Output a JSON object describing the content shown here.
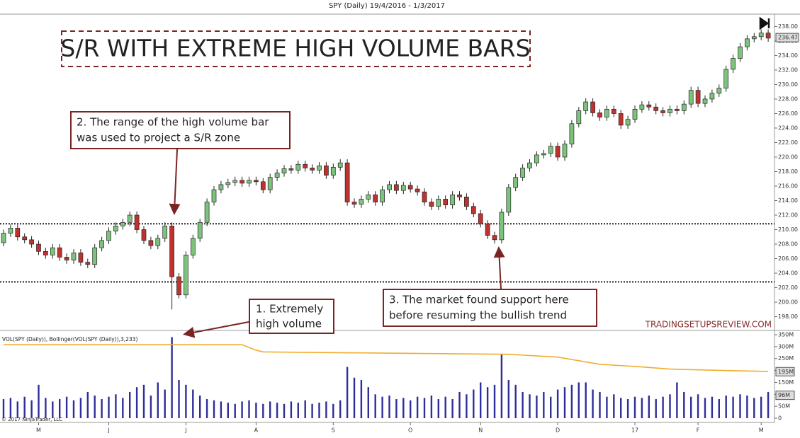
{
  "chart_data": [
    {
      "type": "candlestick",
      "title": "SPY (Daily)  19/4/2016 - 1/3/2017",
      "open": [
        208.2,
        209.5,
        210.2,
        209,
        208.6,
        208,
        207,
        206.5,
        207.5,
        206.2,
        205.8,
        206.8,
        205.5,
        205.2,
        207.5,
        208.5,
        209.8,
        210.5,
        211,
        212,
        210,
        208.5,
        207.8,
        208.8,
        210.5,
        203.5,
        201,
        206.5,
        208.8,
        211,
        213.8,
        215.5,
        216.2,
        216.5,
        216.8,
        216.4,
        216.8,
        216.6,
        215.5,
        217.2,
        217.8,
        218.4,
        218.2,
        219,
        218.5,
        218.2,
        218.8,
        217.5,
        218.6,
        219.2,
        213.8,
        213.5,
        214.2,
        214.8,
        213.8,
        215.5,
        216.2,
        215.4,
        216.1,
        215.6,
        215.2,
        213.8,
        213.2,
        214.2,
        213.4,
        214.8,
        214.5,
        213.2,
        212.2,
        210.8,
        209.2,
        208.6,
        212.4,
        215.8,
        217.2,
        218.5,
        219.2,
        220.3,
        220.5,
        221.5,
        220,
        221.8,
        224.6,
        226.4,
        227.6,
        226.1,
        225.5,
        226.6,
        226,
        224.4,
        225.2,
        226.6,
        227.2,
        226.9,
        226.4,
        226.1,
        226.6,
        226.4,
        227.3,
        229.2,
        227.4,
        228,
        228.8,
        229.5,
        232.1,
        233.6,
        235.2,
        236.3,
        236.6,
        237.1
      ],
      "high": [
        210,
        210.7,
        210.7,
        209.5,
        209.1,
        208.5,
        207.5,
        208,
        208,
        206.7,
        207.3,
        207.3,
        206,
        208,
        209,
        210.3,
        211,
        211.5,
        212.5,
        212.5,
        210.5,
        209,
        209.3,
        211,
        211,
        204,
        207,
        209.3,
        211.5,
        214.3,
        216,
        216.7,
        217,
        217.3,
        217.3,
        217.3,
        217.3,
        217.1,
        217.7,
        218.3,
        218.9,
        218.9,
        219.5,
        219.5,
        219,
        219.3,
        219.3,
        219.1,
        219.7,
        219.7,
        214.3,
        214.7,
        215.3,
        215.3,
        216,
        216.7,
        216.7,
        216.6,
        216.6,
        216.1,
        215.7,
        214.3,
        214.7,
        214.7,
        215.3,
        215.3,
        215,
        213.7,
        212.7,
        211.3,
        209.7,
        212.9,
        216.3,
        217.7,
        219,
        219.7,
        220.8,
        221,
        222,
        222,
        222.3,
        225.1,
        226.9,
        228.1,
        228.1,
        226.6,
        227.1,
        227.1,
        226.5,
        225.7,
        227.1,
        227.7,
        227.7,
        227.4,
        226.9,
        227.1,
        227.1,
        227.8,
        229.7,
        229.7,
        228.5,
        229.3,
        230,
        232.6,
        234.1,
        235.7,
        236.8,
        237.1,
        237.6,
        237.6
      ],
      "low": [
        207.7,
        209,
        208.5,
        208.1,
        207.5,
        206.5,
        206,
        206,
        205.7,
        205.3,
        205.3,
        205,
        204.7,
        204.7,
        207,
        208,
        209.3,
        210,
        210.5,
        209.5,
        208,
        207.3,
        207.3,
        208.3,
        199,
        200.5,
        200.5,
        206,
        208.3,
        210.5,
        213.3,
        215,
        215.7,
        216,
        215.9,
        215.9,
        216.1,
        215,
        215,
        216.7,
        217.3,
        217.7,
        217.7,
        218,
        217.7,
        217.7,
        217,
        217,
        218.1,
        213.3,
        213,
        213,
        213.7,
        213.3,
        213.3,
        215,
        214.9,
        214.9,
        215.1,
        214.7,
        213.3,
        212.7,
        212.7,
        212.9,
        212.9,
        214,
        212.7,
        211.7,
        210.3,
        208.7,
        208.1,
        208.1,
        211.9,
        215.3,
        216.7,
        218,
        218.7,
        219.8,
        220,
        219.5,
        219.5,
        221.3,
        224.1,
        225.9,
        225.6,
        225,
        225,
        225.5,
        223.9,
        223.9,
        224.7,
        226.1,
        226.4,
        225.9,
        225.6,
        225.6,
        225.9,
        225.9,
        226.8,
        226.9,
        226.9,
        227.5,
        228.3,
        229,
        231.6,
        233.1,
        234.7,
        235.8,
        236.1,
        235.9
      ],
      "close": [
        209.5,
        210.2,
        209,
        208.6,
        208,
        207,
        206.5,
        207.5,
        206.2,
        205.8,
        206.8,
        205.5,
        205.2,
        207.5,
        208.5,
        209.8,
        210.5,
        211,
        212,
        210,
        208.5,
        207.8,
        208.8,
        210.5,
        203.5,
        201,
        206.5,
        208.8,
        211,
        213.8,
        215.5,
        216.2,
        216.5,
        216.8,
        216.4,
        216.8,
        216.6,
        215.5,
        217.2,
        217.8,
        218.4,
        218.2,
        219,
        218.5,
        218.2,
        218.8,
        217.5,
        218.6,
        219.2,
        213.8,
        213.5,
        214.2,
        214.8,
        213.8,
        215.5,
        216.2,
        215.4,
        216.1,
        215.6,
        215.2,
        213.8,
        213.2,
        214.2,
        213.4,
        214.8,
        214.5,
        213.2,
        212.2,
        210.8,
        209.2,
        208.6,
        212.4,
        215.8,
        217.2,
        218.5,
        219.2,
        220.3,
        220.5,
        221.5,
        220,
        221.8,
        224.6,
        226.4,
        227.6,
        226.1,
        225.5,
        226.6,
        226,
        224.4,
        225.2,
        226.6,
        227.2,
        226.9,
        226.4,
        226.1,
        226.6,
        226.4,
        227.3,
        229.2,
        227.4,
        228,
        228.8,
        229.5,
        232.1,
        233.6,
        235.2,
        236.3,
        236.6,
        237.1,
        236.4
      ],
      "up_color": "#7cc47c",
      "down_color": "#c0322f",
      "ylim": [
        196.2,
        239.7
      ],
      "yticks": [
        {
          "value": 198,
          "label": "198.00"
        },
        {
          "value": 200,
          "label": "200.00"
        },
        {
          "value": 202,
          "label": "202.00"
        },
        {
          "value": 204,
          "label": "204.00"
        },
        {
          "value": 206,
          "label": "206.00"
        },
        {
          "value": 208,
          "label": "208.00"
        },
        {
          "value": 210,
          "label": "210.00"
        },
        {
          "value": 212,
          "label": "212.00"
        },
        {
          "value": 214,
          "label": "214.00"
        },
        {
          "value": 216,
          "label": "216.00"
        },
        {
          "value": 218,
          "label": "218.00"
        },
        {
          "value": 220,
          "label": "220.00"
        },
        {
          "value": 222,
          "label": "222.00"
        },
        {
          "value": 224,
          "label": "224.00"
        },
        {
          "value": 226,
          "label": "226.00"
        },
        {
          "value": 228,
          "label": "228.00"
        },
        {
          "value": 230,
          "label": "230.00"
        },
        {
          "value": 232,
          "label": "232.00"
        },
        {
          "value": 234,
          "label": "234.00"
        },
        {
          "value": 236,
          "label": "236.00"
        },
        {
          "value": 238,
          "label": "238.00"
        }
      ],
      "levels": [
        210.8,
        202.8
      ],
      "last_price": 236.47,
      "headline": "S/R WITH EXTREME HIGH VOLUME BARS",
      "annotations": [
        {
          "lines": [
            "1. Extremely",
            "high volume"
          ]
        },
        {
          "lines": [
            "2. The range of the high volume bar",
            "was used to project a S/R zone"
          ]
        },
        {
          "lines": [
            "3. The market found support here",
            "before resuming the bullish trend"
          ]
        }
      ],
      "watermark": "TRADINGSETUPSREVIEW.COM"
    },
    {
      "type": "bar",
      "label": "VOL(SPY (Daily)), Bollinger(VOL(SPY (Daily)),3,233)",
      "categories": [
        null,
        null,
        null,
        null,
        null,
        "M",
        null,
        null,
        null,
        null,
        null,
        null,
        null,
        null,
        null,
        "J",
        null,
        null,
        null,
        null,
        null,
        null,
        null,
        null,
        null,
        null,
        "J",
        null,
        null,
        null,
        null,
        null,
        null,
        null,
        null,
        null,
        "A",
        null,
        null,
        null,
        null,
        null,
        null,
        null,
        null,
        null,
        null,
        "S",
        null,
        null,
        null,
        null,
        null,
        null,
        null,
        null,
        null,
        null,
        "O",
        null,
        null,
        null,
        null,
        null,
        null,
        null,
        null,
        null,
        "N",
        null,
        null,
        null,
        null,
        null,
        null,
        null,
        null,
        null,
        null,
        "D",
        null,
        null,
        null,
        null,
        null,
        null,
        null,
        null,
        null,
        null,
        "17",
        null,
        null,
        null,
        null,
        null,
        null,
        null,
        null,
        "F",
        null,
        null,
        null,
        null,
        null,
        null,
        null,
        null,
        "M",
        null
      ],
      "values": [
        80,
        85,
        70,
        90,
        75,
        140,
        85,
        70,
        80,
        90,
        75,
        85,
        110,
        95,
        80,
        90,
        100,
        85,
        110,
        130,
        140,
        95,
        150,
        120,
        340,
        160,
        140,
        120,
        95,
        80,
        75,
        70,
        65,
        60,
        70,
        75,
        65,
        60,
        70,
        65,
        60,
        70,
        65,
        75,
        60,
        65,
        70,
        60,
        75,
        215,
        170,
        160,
        130,
        100,
        90,
        95,
        80,
        85,
        75,
        90,
        85,
        95,
        80,
        90,
        80,
        110,
        100,
        120,
        150,
        130,
        140,
        270,
        160,
        140,
        110,
        100,
        95,
        110,
        90,
        120,
        130,
        140,
        150,
        150,
        120,
        110,
        90,
        100,
        85,
        80,
        90,
        85,
        95,
        80,
        90,
        100,
        150,
        110,
        90,
        100,
        85,
        90,
        80,
        95,
        90,
        100,
        95,
        85,
        90,
        110
      ],
      "color": "#2e2e9a",
      "bollinger": {
        "color": "#f0ad2e",
        "x": [
          0,
          34,
          36,
          37,
          50,
          72,
          79,
          85,
          90,
          95,
          100,
          109
        ],
        "values": [
          308,
          308,
          285,
          278,
          274,
          268,
          256,
          226,
          217,
          206,
          202,
          196
        ]
      },
      "ylim": [
        0,
        359
      ],
      "yticks": [
        0,
        {
          "value": 50,
          "label": "50M"
        },
        {
          "value": 100,
          "label": "100M"
        },
        {
          "value": 150,
          "label": "150M"
        },
        {
          "value": 200,
          "label": "200M"
        },
        {
          "value": 250,
          "label": "250M"
        },
        {
          "value": 300,
          "label": "300M"
        },
        {
          "value": 350,
          "label": "350M"
        }
      ],
      "markers": [
        {
          "value": 195,
          "label": "195M"
        },
        {
          "value": 96,
          "label": "96M"
        }
      ],
      "copyright": "© 2017 NinjaTrader, LLC"
    }
  ]
}
